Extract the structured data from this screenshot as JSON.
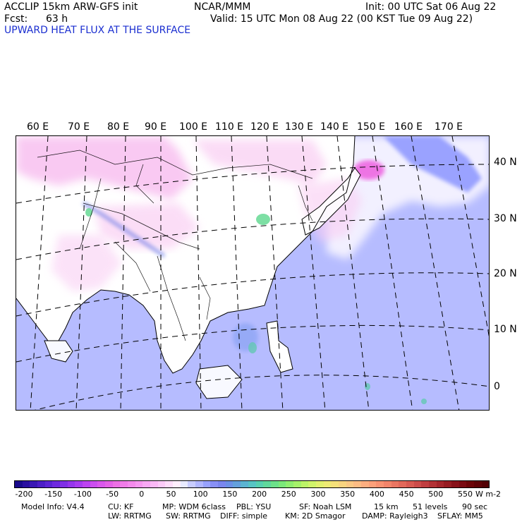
{
  "header": {
    "model": "ACCLIP 15km ARW-GFS init",
    "center": "NCAR/MMM",
    "init": "Init: 00 UTC Sat 06 Aug 22",
    "fcst_label": "Fcst:",
    "fcst_value": "63 h",
    "valid": "Valid: 15 UTC Mon 08 Aug 22 (00 KST Tue 09 Aug 22)",
    "field_title": "UPWARD HEAT FLUX AT THE SURFACE"
  },
  "map": {
    "lon_labels": [
      "60 E",
      "70 E",
      "80 E",
      "90 E",
      "100 E",
      "110 E",
      "120 E",
      "130 E",
      "140 E",
      "150 E",
      "160 E",
      "170 E"
    ],
    "lat_labels": [
      "40 N",
      "30 N",
      "20 N",
      "10 N",
      "0"
    ]
  },
  "colorbar": {
    "labels": [
      "-200",
      "-150",
      "-100",
      "-50",
      "0",
      "50",
      "100",
      "150",
      "200",
      "250",
      "300",
      "350",
      "400",
      "450",
      "500",
      "550"
    ],
    "units": "W m-2",
    "colors": [
      "#1a0a8c",
      "#2a10a0",
      "#3a18b4",
      "#4c1ec6",
      "#5c24d4",
      "#6e2adf",
      "#8030e6",
      "#9636ec",
      "#a83cf0",
      "#bc44f2",
      "#cc4ef0",
      "#da58ec",
      "#e462e6",
      "#ec70e4",
      "#f07ce8",
      "#f48aec",
      "#f698f0",
      "#f8a8f4",
      "#fab8f6",
      "#fccaf8",
      "#fedcfa",
      "#ffeefd",
      "#e8eaff",
      "#c8ccff",
      "#b0b6ff",
      "#98a2ff",
      "#8890f6",
      "#7a86ee",
      "#6c90e6",
      "#64a0dc",
      "#5cb4d2",
      "#58c4c4",
      "#58d0b0",
      "#60d89c",
      "#6ce08a",
      "#7ce87a",
      "#90ee70",
      "#a6f26a",
      "#bcf468",
      "#d0f46a",
      "#e2f06e",
      "#eeea74",
      "#f4e07a",
      "#f8d480",
      "#fac884",
      "#fcbc84",
      "#fcae80",
      "#fca07a",
      "#f89272",
      "#f2846a",
      "#ea7662",
      "#e2685a",
      "#d85a52",
      "#cc4c4a",
      "#c03e40",
      "#b23236",
      "#a4262c",
      "#961c22",
      "#88121a",
      "#7a0a12",
      "#6c0408",
      "#5e0206",
      "#520004"
    ]
  },
  "footer": {
    "line1": [
      {
        "text": "Model Info: V4.4",
        "x": 0
      },
      {
        "text": "CU: KF",
        "x": 0
      },
      {
        "text": "MP: WDM 6class",
        "x": 0
      },
      {
        "text": "PBL: YSU",
        "x": 0
      },
      {
        "text": "SF: Noah LSM",
        "x": 0
      },
      {
        "text": "15 km",
        "x": 0
      },
      {
        "text": "51 levels",
        "x": 0
      },
      {
        "text": "90 sec",
        "x": 0
      }
    ],
    "line2": [
      {
        "text": "LW: RRTMG",
        "x": 0
      },
      {
        "text": "SW: RRTMG",
        "x": 0
      },
      {
        "text": "DIFF: simple",
        "x": 0
      },
      {
        "text": "KM: 2D Smagor",
        "x": 0
      },
      {
        "text": "DAMP: Rayleigh3",
        "x": 0
      },
      {
        "text": "SFLAY: MM5",
        "x": 0
      }
    ]
  }
}
